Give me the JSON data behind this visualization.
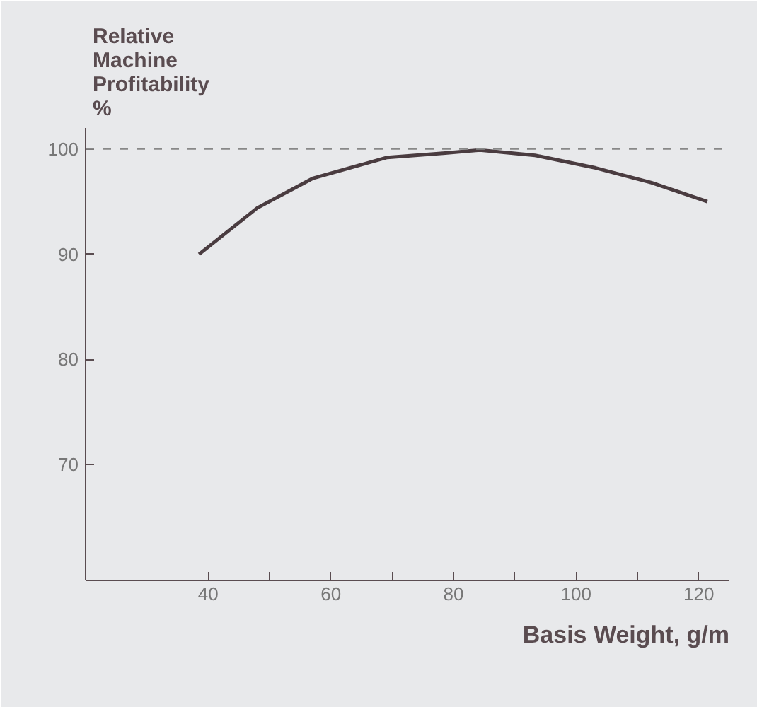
{
  "chart_data": {
    "type": "line",
    "ylabel": "Relative Machine Profitability %",
    "xlabel": "Basis Weight, g/m",
    "x": [
      38.5,
      48,
      57,
      69.2,
      78.3,
      84.3,
      93.3,
      103.2,
      112.3,
      121.4
    ],
    "series": [
      {
        "color": "#4a3c40",
        "values": [
          90,
          94.4,
          97.2,
          99.2,
          99.6,
          99.9,
          99.4,
          98.2,
          96.8,
          95.0
        ]
      }
    ],
    "xlim": [
      20,
      125
    ],
    "ylim": [
      59,
      102
    ],
    "xticks": [
      40,
      {
        "value": 50,
        "label": null
      },
      60,
      {
        "value": 70,
        "label": null
      },
      80,
      {
        "value": 90,
        "label": null
      },
      100,
      {
        "value": 110,
        "label": null
      },
      120
    ],
    "yticks": [
      70,
      80,
      90,
      100
    ],
    "ref_lines": [
      {
        "axis": "y",
        "value": 100,
        "color": "#888888",
        "line_style": "dashed"
      }
    ],
    "grid": false,
    "marker": "none",
    "line_style": "solid"
  }
}
